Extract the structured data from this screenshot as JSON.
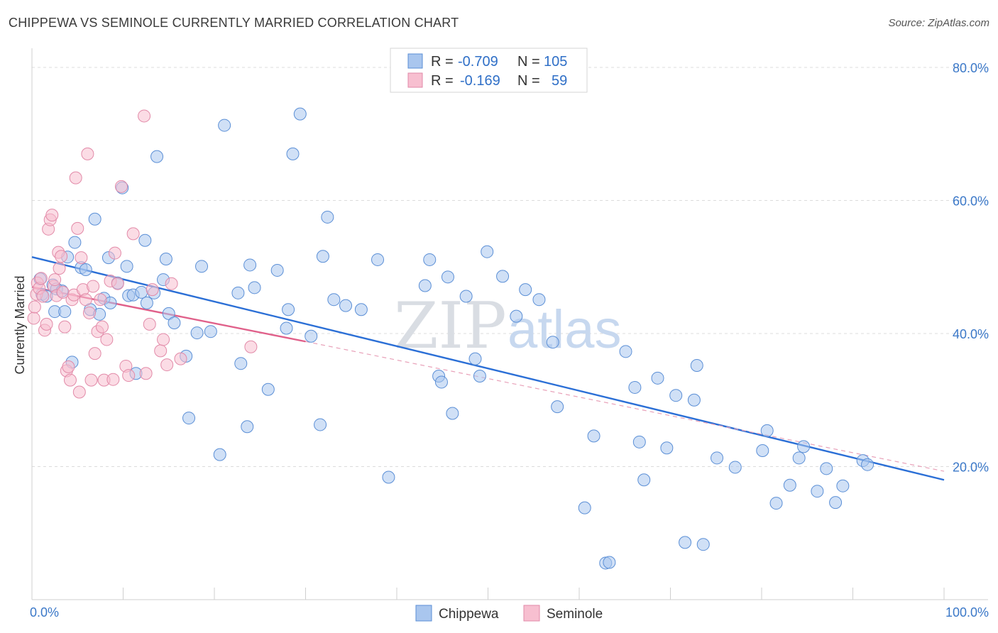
{
  "chart_data": {
    "type": "scatter",
    "title": "CHIPPEWA VS SEMINOLE CURRENTLY MARRIED CORRELATION CHART",
    "source": "Source: ZipAtlas.com",
    "xlabel": "",
    "ylabel": "Currently Married",
    "xlim": [
      0,
      100
    ],
    "ylim": [
      0,
      80
    ],
    "x_tick_labels": [
      "0.0%",
      "100.0%"
    ],
    "y_tick_labels": [
      "20.0%",
      "40.0%",
      "60.0%",
      "80.0%"
    ],
    "y_ticks": [
      20,
      40,
      60,
      80
    ],
    "watermark": {
      "zip": "ZIP",
      "atlas": "atlas"
    },
    "legend": {
      "r_label": "R =",
      "n_label": "N =",
      "entries": [
        {
          "name": "Chippewa",
          "r": "-0.709",
          "n": "105",
          "color": "#a9c6ee",
          "stroke": "#5b8fd6"
        },
        {
          "name": "Seminole",
          "r": "-0.169",
          "n": "59",
          "color": "#f7bfd0",
          "stroke": "#e28aa8"
        }
      ]
    },
    "series": [
      {
        "name": "Chippewa",
        "color": "#a9c6ee",
        "stroke": "#5b8fd6",
        "trend": {
          "x0": 0,
          "y0": 51.5,
          "x1": 100,
          "y1": 18.0,
          "color": "#2b6fd6"
        },
        "points": [
          [
            0.9,
            48.2
          ],
          [
            1.1,
            45.9
          ],
          [
            1.6,
            45.6
          ],
          [
            2.3,
            47.3
          ],
          [
            2.5,
            43.3
          ],
          [
            2.7,
            46.7
          ],
          [
            3.3,
            46.4
          ],
          [
            3.6,
            43.3
          ],
          [
            3.9,
            51.5
          ],
          [
            4.4,
            35.7
          ],
          [
            4.7,
            53.7
          ],
          [
            5.4,
            49.9
          ],
          [
            5.9,
            49.6
          ],
          [
            6.4,
            43.6
          ],
          [
            6.9,
            57.2
          ],
          [
            7.4,
            42.9
          ],
          [
            7.9,
            45.3
          ],
          [
            8.4,
            51.4
          ],
          [
            8.6,
            44.6
          ],
          [
            9.4,
            47.6
          ],
          [
            9.9,
            61.9
          ],
          [
            10.4,
            50.1
          ],
          [
            10.6,
            45.7
          ],
          [
            11.1,
            45.8
          ],
          [
            11.4,
            34.0
          ],
          [
            12.0,
            46.2
          ],
          [
            12.4,
            54.0
          ],
          [
            12.6,
            44.6
          ],
          [
            13.4,
            46.1
          ],
          [
            13.7,
            66.6
          ],
          [
            14.4,
            48.1
          ],
          [
            14.7,
            51.2
          ],
          [
            15.0,
            43.0
          ],
          [
            15.6,
            41.6
          ],
          [
            16.9,
            36.6
          ],
          [
            17.2,
            27.3
          ],
          [
            18.1,
            40.1
          ],
          [
            18.6,
            50.1
          ],
          [
            19.6,
            40.3
          ],
          [
            20.6,
            21.8
          ],
          [
            21.1,
            71.3
          ],
          [
            22.6,
            46.1
          ],
          [
            22.9,
            35.5
          ],
          [
            23.6,
            26.0
          ],
          [
            23.9,
            50.3
          ],
          [
            24.4,
            46.9
          ],
          [
            25.9,
            31.6
          ],
          [
            26.9,
            49.5
          ],
          [
            27.9,
            40.8
          ],
          [
            28.1,
            43.6
          ],
          [
            28.6,
            67.0
          ],
          [
            29.4,
            73.0
          ],
          [
            30.6,
            39.6
          ],
          [
            31.6,
            26.3
          ],
          [
            31.9,
            51.6
          ],
          [
            32.4,
            57.5
          ],
          [
            33.1,
            45.1
          ],
          [
            34.4,
            44.2
          ],
          [
            36.1,
            43.6
          ],
          [
            37.9,
            51.1
          ],
          [
            39.1,
            18.4
          ],
          [
            43.1,
            47.2
          ],
          [
            43.6,
            51.1
          ],
          [
            44.6,
            33.6
          ],
          [
            44.9,
            32.7
          ],
          [
            45.6,
            48.5
          ],
          [
            46.1,
            28.0
          ],
          [
            47.6,
            45.6
          ],
          [
            48.6,
            36.2
          ],
          [
            49.1,
            33.6
          ],
          [
            49.9,
            52.3
          ],
          [
            51.6,
            48.6
          ],
          [
            53.1,
            42.6
          ],
          [
            54.1,
            46.6
          ],
          [
            55.6,
            45.1
          ],
          [
            57.1,
            38.7
          ],
          [
            57.6,
            29.0
          ],
          [
            60.6,
            13.8
          ],
          [
            61.6,
            24.6
          ],
          [
            62.9,
            5.5
          ],
          [
            63.3,
            5.6
          ],
          [
            65.1,
            37.3
          ],
          [
            66.1,
            31.9
          ],
          [
            66.6,
            23.7
          ],
          [
            67.1,
            18.0
          ],
          [
            68.6,
            33.3
          ],
          [
            69.6,
            22.8
          ],
          [
            70.6,
            30.7
          ],
          [
            71.6,
            8.6
          ],
          [
            72.6,
            30.0
          ],
          [
            72.9,
            35.2
          ],
          [
            73.6,
            8.3
          ],
          [
            75.1,
            21.3
          ],
          [
            77.1,
            19.9
          ],
          [
            80.1,
            22.4
          ],
          [
            80.6,
            25.4
          ],
          [
            81.6,
            14.5
          ],
          [
            83.1,
            17.2
          ],
          [
            84.1,
            21.3
          ],
          [
            84.6,
            23.0
          ],
          [
            86.1,
            16.3
          ],
          [
            87.1,
            19.7
          ],
          [
            88.1,
            14.6
          ],
          [
            88.9,
            17.1
          ],
          [
            91.1,
            20.9
          ],
          [
            91.6,
            20.3
          ]
        ]
      },
      {
        "name": "Seminole",
        "color": "#f7bfd0",
        "stroke": "#e28aa8",
        "trend": {
          "x0": 0,
          "y0": 47.0,
          "x1": 30,
          "y1": 38.8,
          "color": "#e0608a"
        },
        "trend_extension": {
          "x0": 30,
          "y0": 38.8,
          "x1": 100,
          "y1": 19.3,
          "color": "#e8a0b8"
        },
        "points": [
          [
            0.2,
            42.3
          ],
          [
            0.3,
            44.0
          ],
          [
            0.5,
            45.9
          ],
          [
            0.6,
            47.6
          ],
          [
            0.8,
            46.8
          ],
          [
            1.0,
            48.3
          ],
          [
            1.2,
            45.6
          ],
          [
            1.4,
            40.5
          ],
          [
            1.6,
            41.4
          ],
          [
            1.8,
            55.7
          ],
          [
            2.0,
            57.1
          ],
          [
            2.2,
            57.8
          ],
          [
            2.4,
            47.1
          ],
          [
            2.5,
            48.1
          ],
          [
            2.7,
            45.7
          ],
          [
            2.9,
            52.2
          ],
          [
            3.0,
            49.8
          ],
          [
            3.2,
            51.6
          ],
          [
            3.4,
            46.2
          ],
          [
            3.6,
            41.0
          ],
          [
            3.8,
            34.4
          ],
          [
            4.0,
            35.0
          ],
          [
            4.2,
            33.0
          ],
          [
            4.4,
            45.1
          ],
          [
            4.6,
            45.8
          ],
          [
            4.8,
            63.4
          ],
          [
            5.0,
            55.8
          ],
          [
            5.2,
            31.2
          ],
          [
            5.4,
            51.4
          ],
          [
            5.6,
            46.6
          ],
          [
            5.9,
            45.1
          ],
          [
            6.1,
            67.0
          ],
          [
            6.3,
            43.1
          ],
          [
            6.5,
            33.0
          ],
          [
            6.7,
            47.1
          ],
          [
            6.9,
            37.0
          ],
          [
            7.2,
            40.3
          ],
          [
            7.5,
            45.1
          ],
          [
            7.7,
            41.0
          ],
          [
            7.9,
            33.0
          ],
          [
            8.2,
            39.1
          ],
          [
            8.6,
            47.9
          ],
          [
            8.9,
            33.1
          ],
          [
            9.1,
            52.1
          ],
          [
            9.4,
            47.5
          ],
          [
            9.8,
            62.1
          ],
          [
            10.3,
            35.1
          ],
          [
            10.6,
            33.7
          ],
          [
            11.1,
            55.0
          ],
          [
            12.3,
            72.7
          ],
          [
            12.5,
            34.0
          ],
          [
            12.9,
            41.4
          ],
          [
            13.2,
            46.6
          ],
          [
            14.1,
            37.4
          ],
          [
            14.4,
            39.1
          ],
          [
            14.8,
            35.3
          ],
          [
            15.3,
            47.5
          ],
          [
            16.3,
            36.2
          ],
          [
            24.0,
            38.0
          ]
        ]
      }
    ]
  }
}
